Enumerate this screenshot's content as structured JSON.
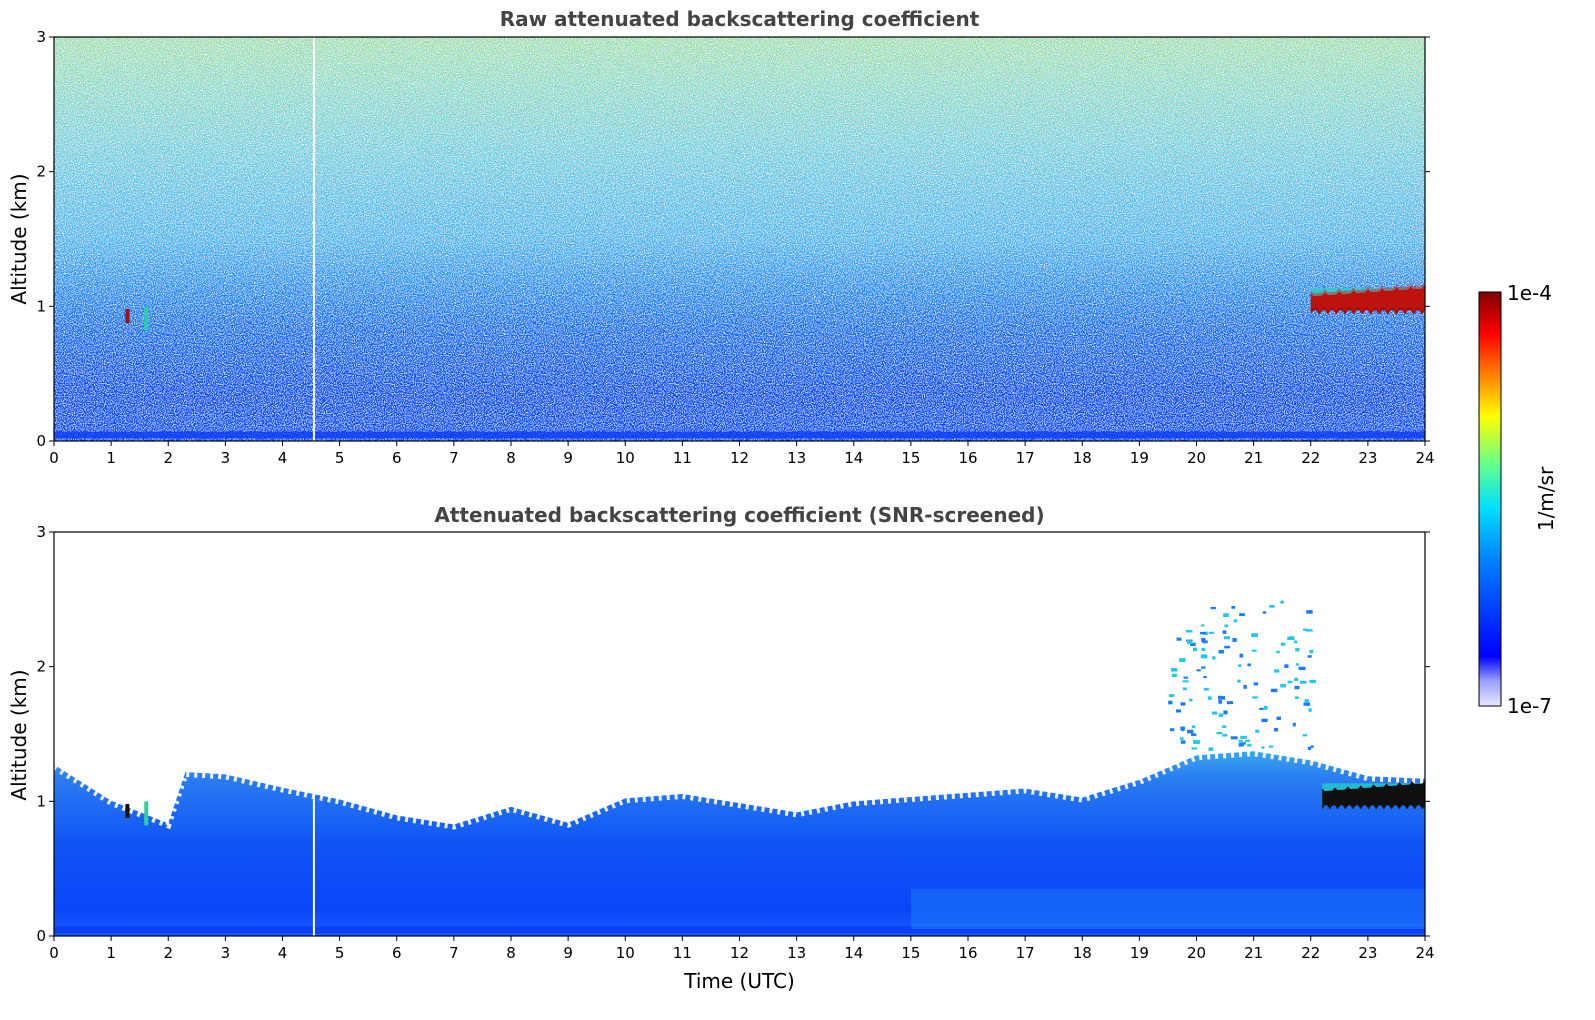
{
  "chart_data": [
    {
      "type": "heatmap",
      "title": "Raw attenuated backscattering coefficient",
      "xlabel": "",
      "ylabel": "Altitude (km)",
      "xlim": [
        0,
        24
      ],
      "ylim": [
        0,
        3
      ],
      "x_ticks": [
        "0",
        "1",
        "2",
        "3",
        "4",
        "5",
        "6",
        "7",
        "8",
        "9",
        "10",
        "11",
        "12",
        "13",
        "14",
        "15",
        "16",
        "17",
        "18",
        "19",
        "20",
        "21",
        "22",
        "23",
        "24"
      ],
      "y_ticks": [
        "0",
        "1",
        "2",
        "3"
      ],
      "features": [
        {
          "description": "dense boundary-layer backscatter",
          "x_range": [
            0,
            24
          ],
          "altitude_top_km": 0.9
        },
        {
          "description": "noisy signal aloft",
          "x_range": [
            0,
            24
          ],
          "altitude_range_km": [
            1.0,
            3.0
          ]
        },
        {
          "description": "cloud layer (strong return)",
          "x_range": [
            22,
            24
          ],
          "altitude_km": 1.0
        },
        {
          "description": "data gap",
          "x": 4.55
        }
      ]
    },
    {
      "type": "heatmap",
      "title": "Attenuated backscattering coefficient (SNR-screened)",
      "xlabel": "Time (UTC)",
      "ylabel": "Altitude (km)",
      "xlim": [
        0,
        24
      ],
      "ylim": [
        0,
        3
      ],
      "x_ticks": [
        "0",
        "1",
        "2",
        "3",
        "4",
        "5",
        "6",
        "7",
        "8",
        "9",
        "10",
        "11",
        "12",
        "13",
        "14",
        "15",
        "16",
        "17",
        "18",
        "19",
        "20",
        "21",
        "22",
        "23",
        "24"
      ],
      "y_ticks": [
        "0",
        "1",
        "2",
        "3"
      ],
      "layer_top_km": [
        {
          "x": 0,
          "y": 1.25
        },
        {
          "x": 1,
          "y": 1.0
        },
        {
          "x": 2,
          "y": 0.85
        },
        {
          "x": 2.3,
          "y": 1.2
        },
        {
          "x": 3,
          "y": 1.2
        },
        {
          "x": 4,
          "y": 1.12
        },
        {
          "x": 5,
          "y": 1.0
        },
        {
          "x": 6,
          "y": 0.9
        },
        {
          "x": 7,
          "y": 0.85
        },
        {
          "x": 8,
          "y": 0.95
        },
        {
          "x": 9,
          "y": 0.85
        },
        {
          "x": 10,
          "y": 1.0
        },
        {
          "x": 11,
          "y": 1.05
        },
        {
          "x": 12,
          "y": 1.0
        },
        {
          "x": 13,
          "y": 0.9
        },
        {
          "x": 14,
          "y": 1.0
        },
        {
          "x": 15,
          "y": 1.05
        },
        {
          "x": 16,
          "y": 1.05
        },
        {
          "x": 17,
          "y": 1.1
        },
        {
          "x": 18,
          "y": 1.05
        },
        {
          "x": 19,
          "y": 1.15
        },
        {
          "x": 20,
          "y": 1.35
        },
        {
          "x": 21,
          "y": 1.35
        },
        {
          "x": 22,
          "y": 1.3
        },
        {
          "x": 23,
          "y": 1.2
        },
        {
          "x": 24,
          "y": 1.15
        }
      ],
      "features": [
        {
          "description": "cloud layer (saturated return)",
          "x_range": [
            22.2,
            24
          ],
          "altitude_km": 1.0
        },
        {
          "description": "sparse detections aloft",
          "x_range": [
            19.5,
            22
          ],
          "altitude_range_km": [
            1.4,
            2.5
          ]
        }
      ]
    }
  ],
  "colorbar": {
    "label": "1/m/sr",
    "min_label": "1e-7",
    "max_label": "1e-4",
    "colormap": "jet",
    "colors": [
      "#e8e8ff",
      "#0000ff",
      "#0080ff",
      "#00ffff",
      "#80ff80",
      "#ffff00",
      "#ff8000",
      "#ff0000",
      "#800000"
    ]
  }
}
